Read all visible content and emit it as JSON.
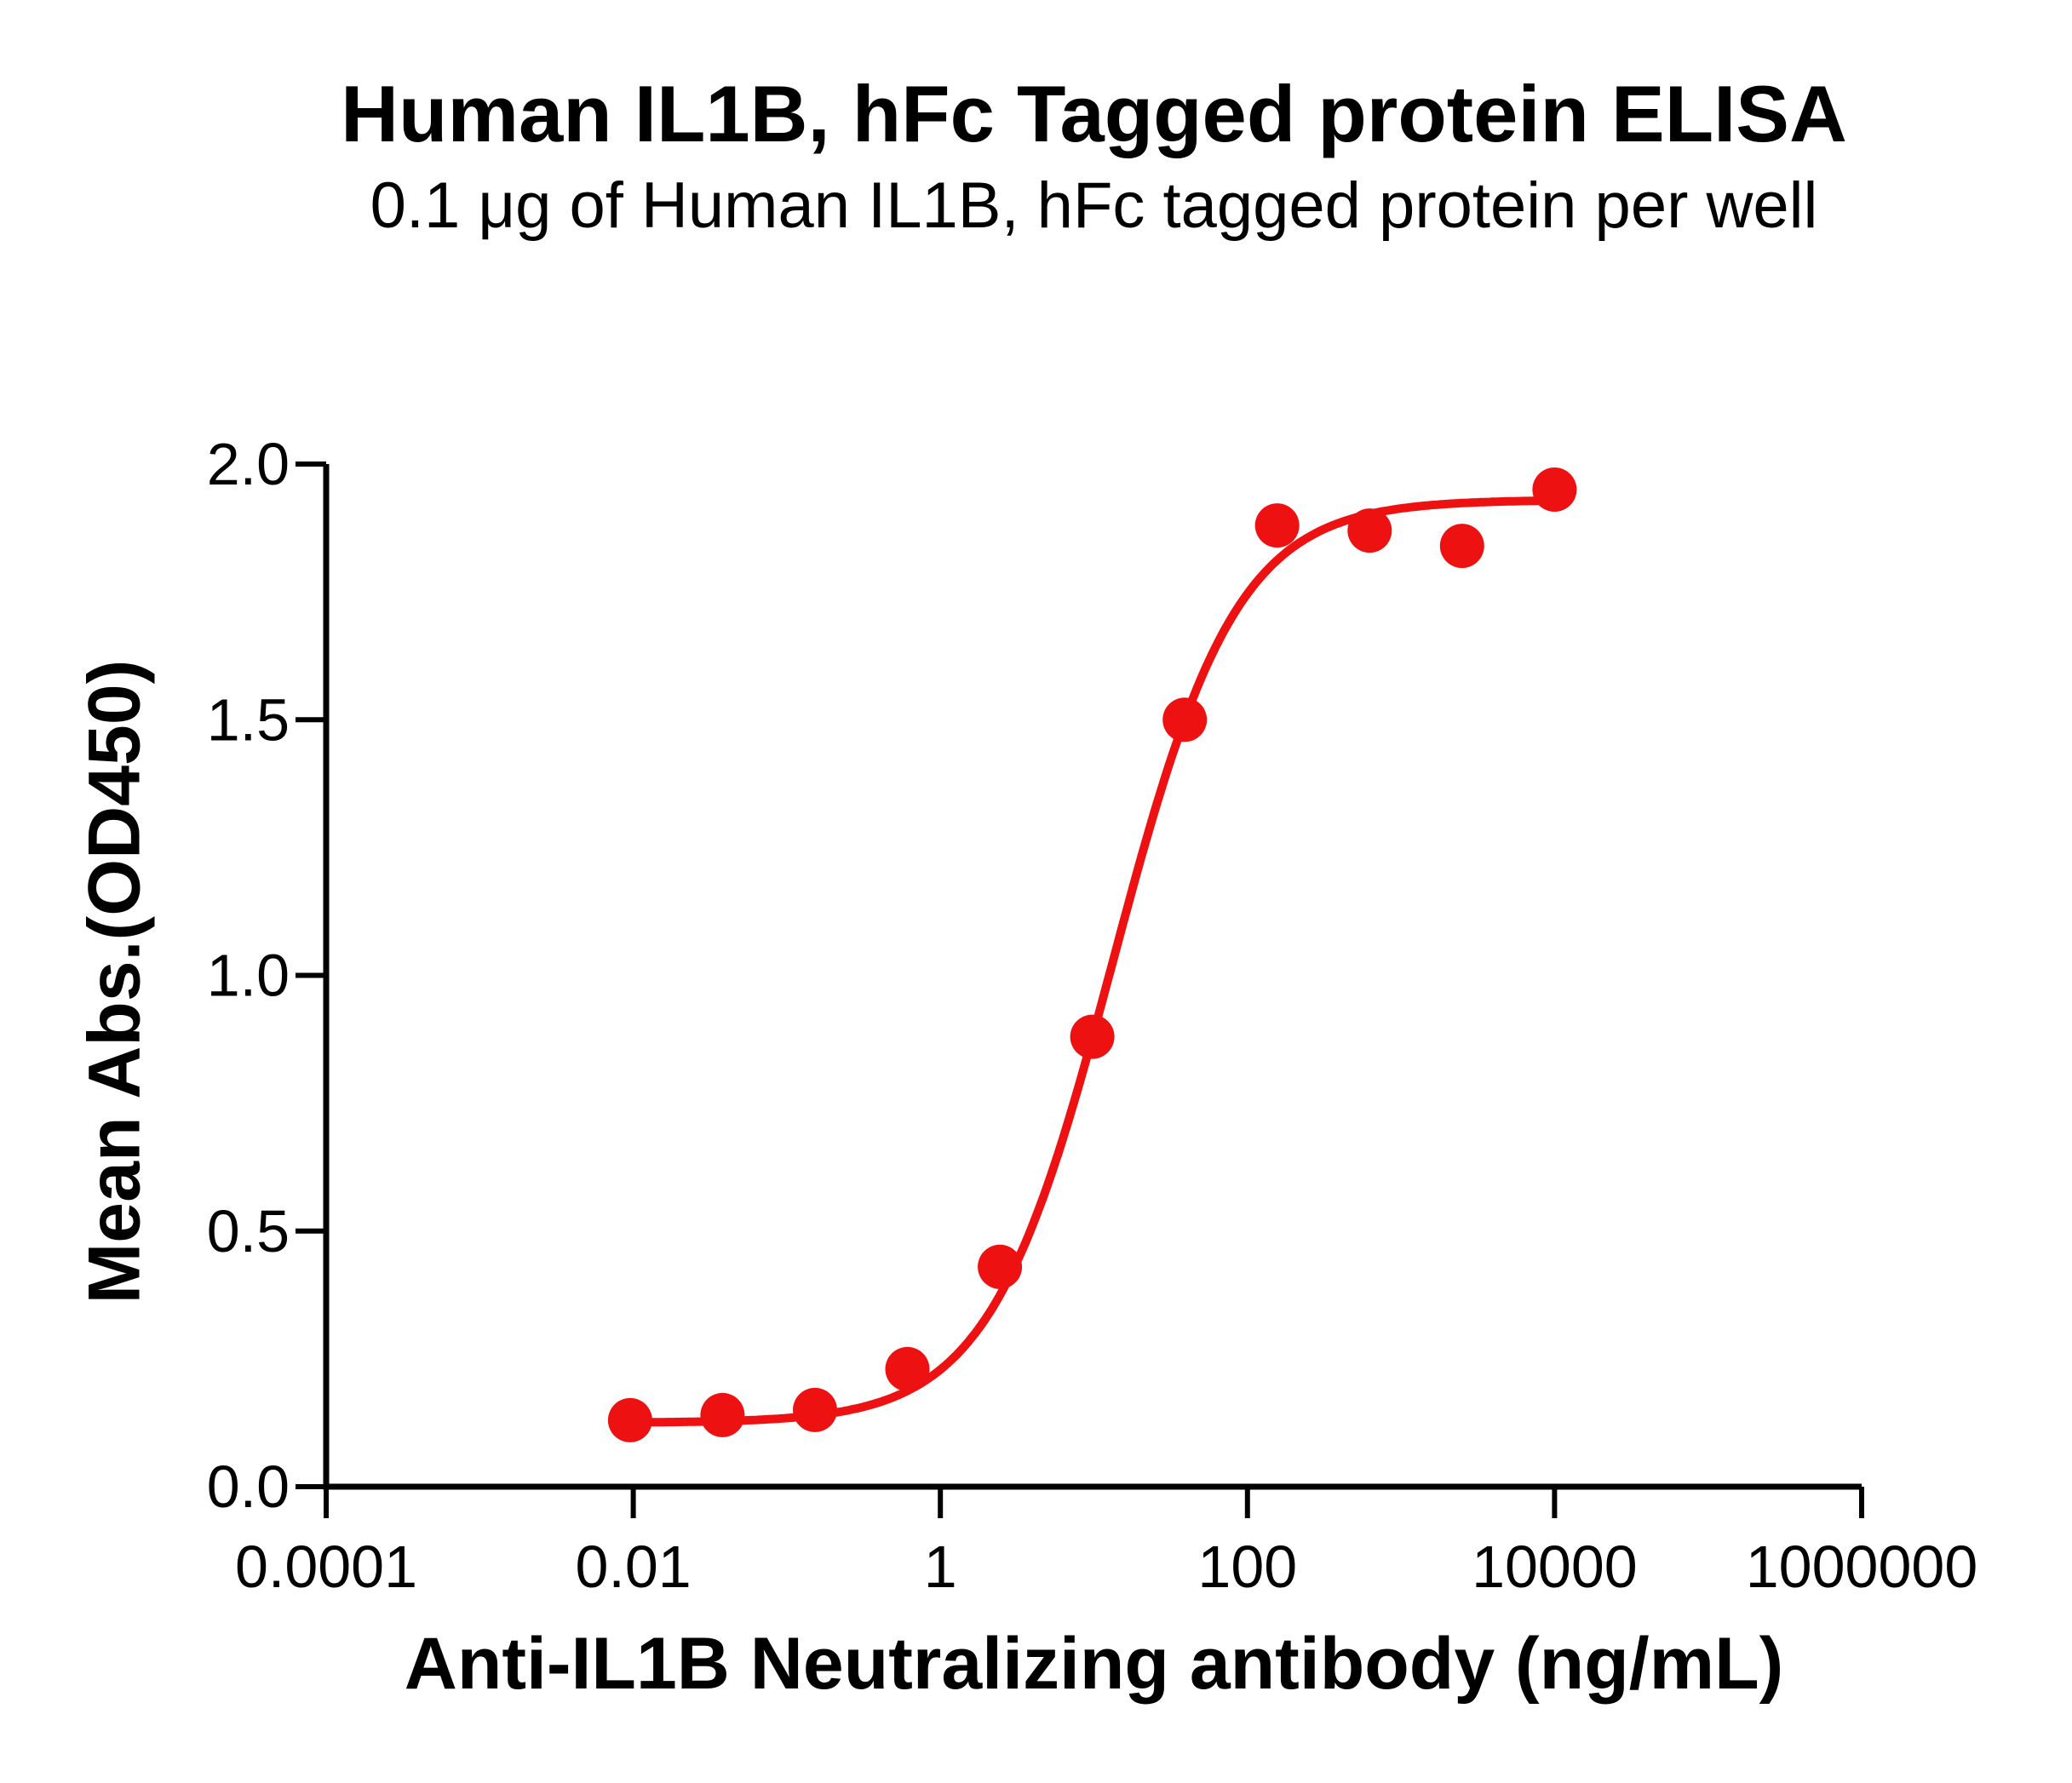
{
  "chart_data": {
    "type": "scatter",
    "title": "Human IL1B, hFc Tagged protein ELISA",
    "subtitle": "0.1 μg of Human IL1B, hFc tagged protein per well",
    "xlabel": "Anti-IL1B Neutralizing antibody (ng/mL)",
    "ylabel": "Mean Abs.(OD450)",
    "x_scale": "log10",
    "xlim": [
      0.0001,
      1000000
    ],
    "ylim": [
      0.0,
      2.0
    ],
    "x_tick_values": [
      0.0001,
      0.01,
      1,
      100,
      10000,
      1000000
    ],
    "x_tick_labels": [
      "0.0001",
      "0.01",
      "1",
      "100",
      "10000",
      "1000000"
    ],
    "y_tick_values": [
      0.0,
      0.5,
      1.0,
      1.5,
      2.0
    ],
    "y_tick_labels": [
      "0.0",
      "0.5",
      "1.0",
      "1.5",
      "2.0"
    ],
    "grid": false,
    "legend_position": "none",
    "axis_color": "#000000",
    "series": [
      {
        "name": "Anti-IL1B Neutralizing antibody",
        "marker": "circle",
        "color": "#EE1111",
        "x": [
          0.00954,
          0.03815,
          0.15259,
          0.61035,
          2.44141,
          9.76563,
          39.0625,
          156.25,
          625,
          2500,
          10000
        ],
        "y": [
          0.13,
          0.14,
          0.15,
          0.23,
          0.43,
          0.88,
          1.5,
          1.88,
          1.87,
          1.84,
          1.95
        ]
      }
    ],
    "fit_curve": {
      "model": "4PL",
      "bottom": 0.125,
      "top": 1.93,
      "ec50_ng_ml": 13.3,
      "hill": 1.08,
      "color": "#EE1111"
    }
  }
}
